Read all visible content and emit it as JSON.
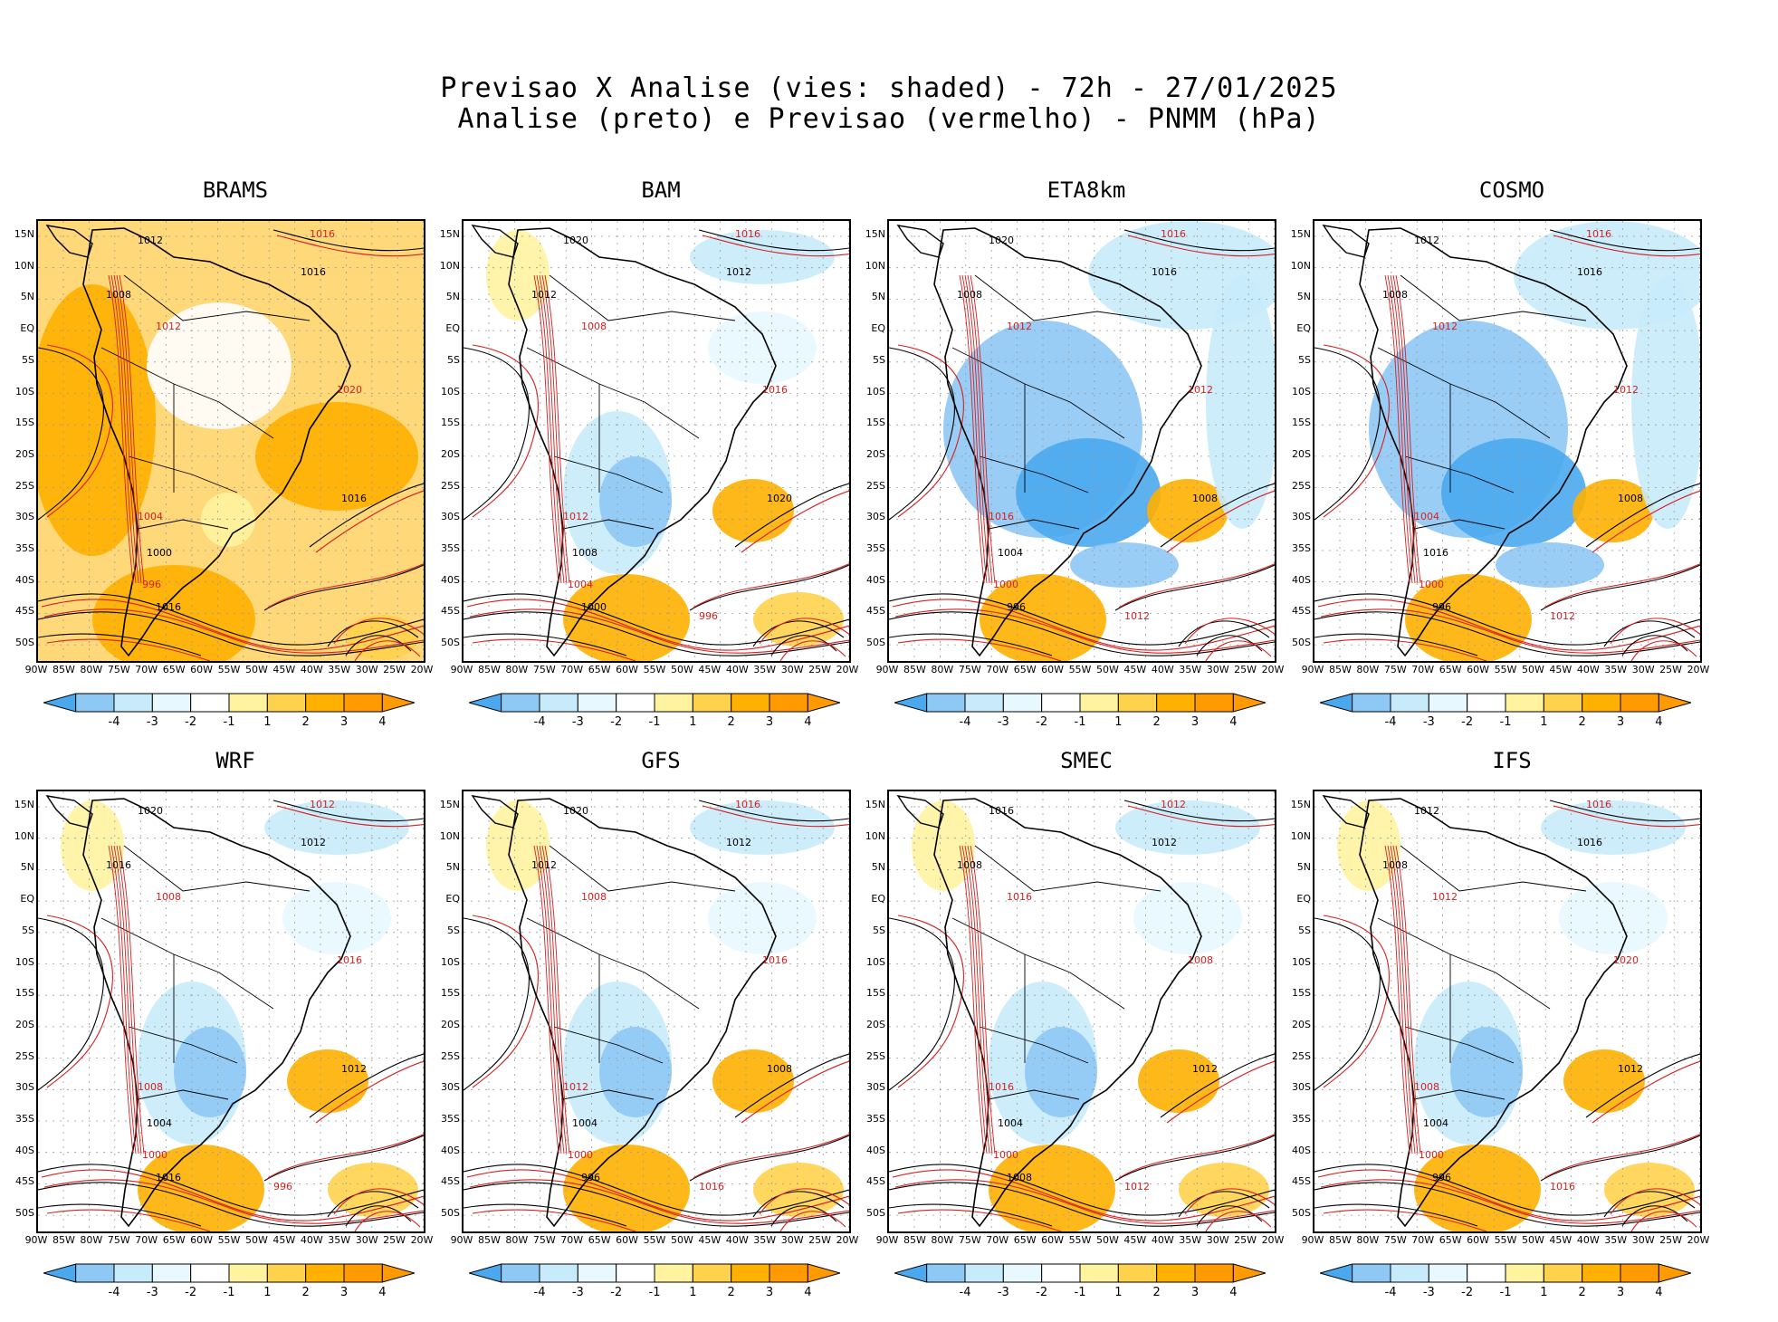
{
  "header": {
    "line1": "Previsao X Analise (vies: shaded) - 72h - 27/01/2025",
    "line2": "Analise (preto) e Previsao (vermelho) - PNMM (hPa)"
  },
  "axes": {
    "lat_labels": [
      "15N",
      "10N",
      "5N",
      "EQ",
      "5S",
      "10S",
      "15S",
      "20S",
      "25S",
      "30S",
      "35S",
      "40S",
      "45S",
      "50S"
    ],
    "lon_labels": [
      "90W",
      "85W",
      "80W",
      "75W",
      "70W",
      "65W",
      "60W",
      "55W",
      "50W",
      "45W",
      "40W",
      "35W",
      "30W",
      "25W",
      "20W"
    ]
  },
  "colorbar": {
    "labels": [
      "-4",
      "-3",
      "-2",
      "-1",
      "1",
      "2",
      "3",
      "4"
    ],
    "colors": [
      "#4aa8ef",
      "#8ec8f5",
      "#c8ebfb",
      "#e8f8ff",
      "#ffffff",
      "#fff3a0",
      "#ffd24d",
      "#ffb000",
      "#ff9a00"
    ]
  },
  "panels": [
    {
      "model": "BRAMS",
      "bias": "warm",
      "contours": [
        "1012",
        "1016",
        "1008",
        "1012",
        "1016",
        "1020",
        "1016",
        "1004",
        "1000",
        "996",
        "1016"
      ]
    },
    {
      "model": "BAM",
      "bias": "mixed",
      "contours": [
        "1020",
        "1016",
        "1012",
        "1008",
        "1012",
        "1016",
        "1020",
        "1012",
        "1008",
        "1004",
        "1000",
        "996"
      ]
    },
    {
      "model": "ETA8km",
      "bias": "cold",
      "contours": [
        "1020",
        "1016",
        "1008",
        "1012",
        "1016",
        "1012",
        "1008",
        "1016",
        "1004",
        "1000",
        "996",
        "1012"
      ]
    },
    {
      "model": "COSMO",
      "bias": "cold",
      "contours": [
        "1012",
        "1016",
        "1008",
        "1012",
        "1016",
        "1012",
        "1008",
        "1004",
        "1016",
        "1000",
        "996",
        "1012"
      ]
    },
    {
      "model": "WRF",
      "bias": "mixed",
      "contours": [
        "1020",
        "1012",
        "1016",
        "1008",
        "1012",
        "1016",
        "1012",
        "1008",
        "1004",
        "1000",
        "1016",
        "996"
      ]
    },
    {
      "model": "GFS",
      "bias": "mixed",
      "contours": [
        "1020",
        "1016",
        "1012",
        "1008",
        "1012",
        "1016",
        "1008",
        "1012",
        "1004",
        "1000",
        "996",
        "1016"
      ]
    },
    {
      "model": "SMEC",
      "bias": "mixed",
      "contours": [
        "1016",
        "1012",
        "1008",
        "1016",
        "1012",
        "1008",
        "1012",
        "1016",
        "1004",
        "1000",
        "1008",
        "1012"
      ]
    },
    {
      "model": "IFS",
      "bias": "mixed",
      "contours": [
        "1012",
        "1016",
        "1008",
        "1012",
        "1016",
        "1020",
        "1012",
        "1008",
        "1004",
        "1000",
        "996",
        "1016"
      ]
    }
  ]
}
